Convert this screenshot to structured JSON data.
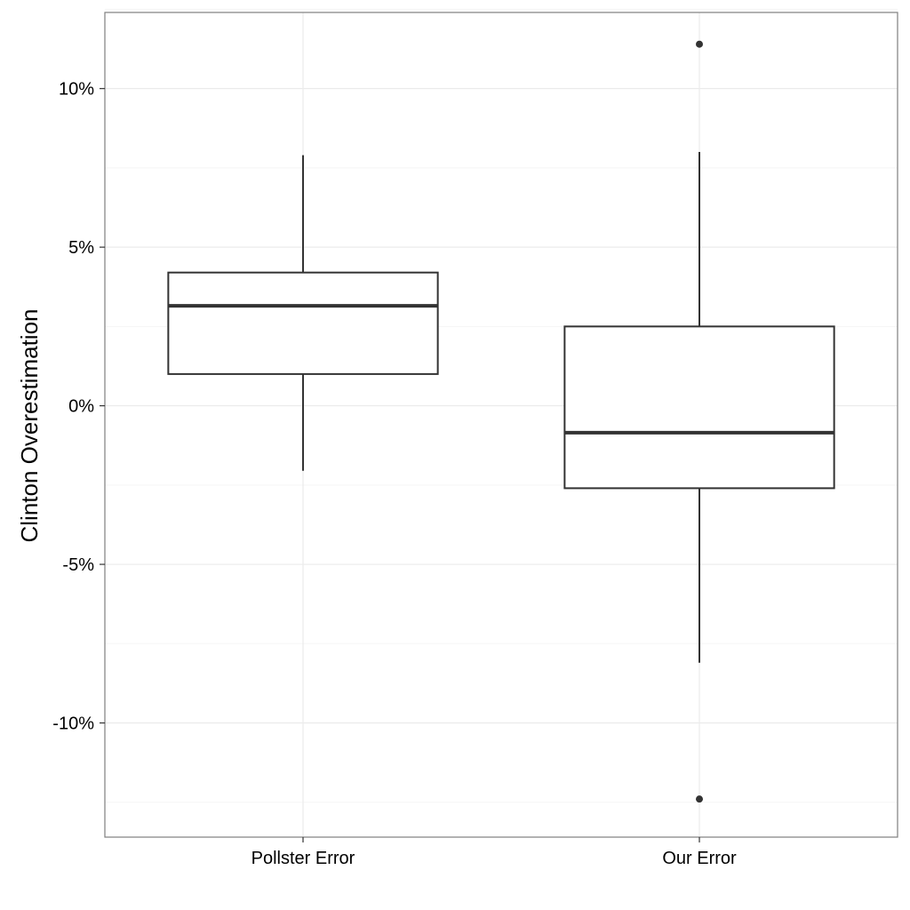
{
  "chart_data": {
    "type": "boxplot",
    "title": "",
    "xlabel": "",
    "ylabel": "Clinton Overestimation",
    "ylim": [
      -13.6,
      12.4
    ],
    "grid": true,
    "legend": "none",
    "y_ticks": [
      {
        "value": 10,
        "label": "10%"
      },
      {
        "value": 5,
        "label": "5%"
      },
      {
        "value": 0,
        "label": "0%"
      },
      {
        "value": -5,
        "label": "-5%"
      },
      {
        "value": -10,
        "label": "-10%"
      }
    ],
    "y_minor_ticks": [
      12.5,
      7.5,
      2.5,
      -2.5,
      -7.5,
      -12.5
    ],
    "categories": [
      "Pollster Error",
      "Our Error"
    ],
    "boxes": [
      {
        "category": "Pollster Error",
        "whisker_low": -2.05,
        "q1": 1.0,
        "median": 3.15,
        "q3": 4.2,
        "whisker_high": 7.9,
        "outliers": []
      },
      {
        "category": "Our Error",
        "whisker_low": -8.1,
        "q1": -2.6,
        "median": -0.85,
        "q3": 2.5,
        "whisker_high": 8.0,
        "outliers": [
          11.4,
          -12.4
        ]
      }
    ],
    "colors": {
      "box_stroke": "#333333",
      "outlier": "#333333",
      "grid_major": "#ebebeb",
      "grid_minor": "#f5f5f5",
      "panel_border": "#7f7f7f"
    }
  }
}
